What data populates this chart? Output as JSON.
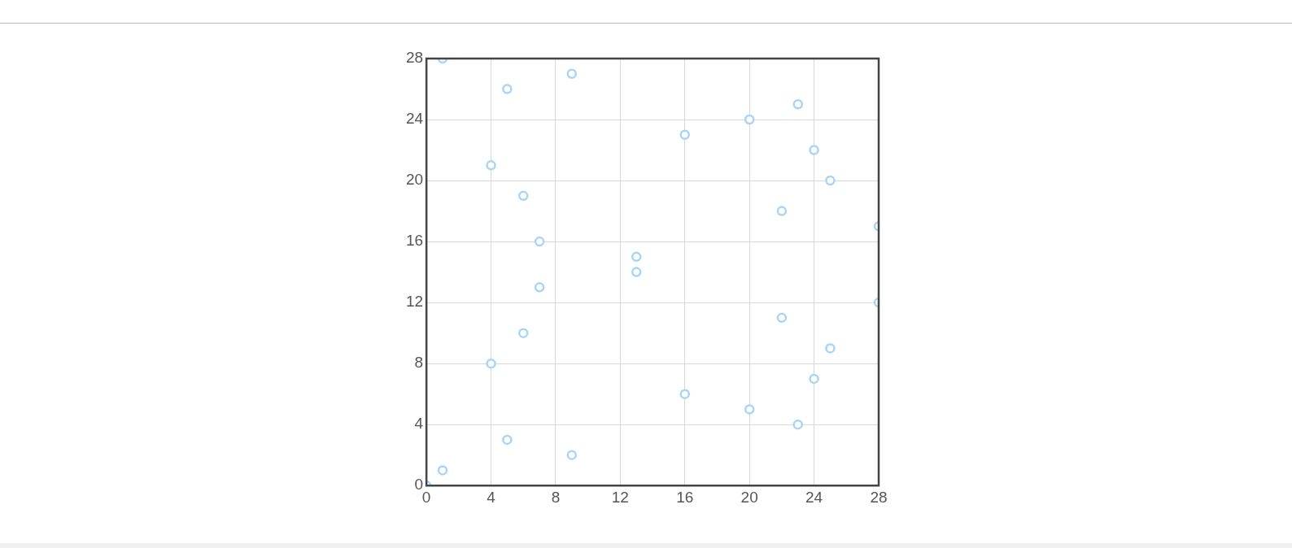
{
  "chart_data": {
    "type": "scatter",
    "x": [
      0,
      1,
      1,
      5,
      9,
      4,
      6,
      7,
      7,
      6,
      4,
      5,
      9,
      13,
      13,
      16,
      16,
      20,
      20,
      23,
      23,
      24,
      24,
      25,
      25,
      22,
      22,
      28,
      28
    ],
    "values": [
      0,
      1,
      28,
      26,
      27,
      21,
      19,
      16,
      13,
      10,
      8,
      3,
      2,
      15,
      14,
      23,
      6,
      24,
      5,
      25,
      4,
      22,
      7,
      20,
      9,
      18,
      11,
      17,
      12
    ],
    "color": "#a8d4f7",
    "marker": "circle",
    "xlim": [
      0,
      28
    ],
    "ylim": [
      0,
      28
    ],
    "xticks": [
      0,
      4,
      8,
      12,
      16,
      20,
      24,
      28
    ],
    "yticks": [
      0,
      4,
      8,
      12,
      16,
      20,
      24,
      28
    ],
    "grid": true,
    "legend": false
  }
}
